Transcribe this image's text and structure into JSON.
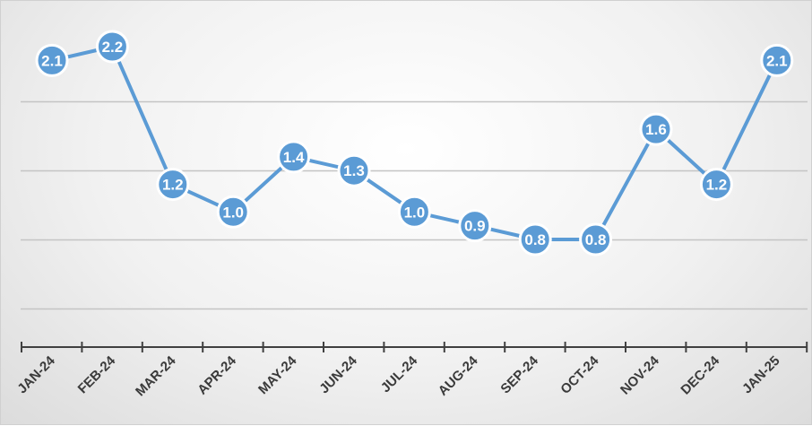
{
  "chart_data": {
    "type": "line",
    "categories": [
      "JAN-24",
      "FEB-24",
      "MAR-24",
      "APR-24",
      "MAY-24",
      "JUN-24",
      "JUL-24",
      "AUG-24",
      "SEP-24",
      "OCT-24",
      "NOV-24",
      "DEC-24",
      "JAN-25"
    ],
    "series": [
      {
        "values": [
          2.1,
          2.2,
          1.2,
          1.0,
          1.4,
          1.3,
          1.0,
          0.9,
          0.8,
          0.8,
          1.6,
          1.2,
          2.1
        ]
      }
    ],
    "data_labels": [
      "2.1",
      "2.2",
      "1.2",
      "1.0",
      "1.4",
      "1.3",
      "1.0",
      "0.9",
      "0.8",
      "0.8",
      "1.6",
      "1.2",
      "2.1"
    ],
    "title": "",
    "xlabel": "",
    "ylabel": "",
    "ylim": [
      -0.2,
      2.4
    ],
    "y_gridlines": [
      0.3,
      0.8,
      1.3,
      1.8
    ],
    "y_axis_visible": false,
    "grid": true,
    "legend": "none",
    "colors": {
      "line": "#5b9bd5",
      "marker": "#5b9bd5",
      "label_text": "#ffffff",
      "grid": "#c4c4c4",
      "axis": "#404040"
    }
  }
}
